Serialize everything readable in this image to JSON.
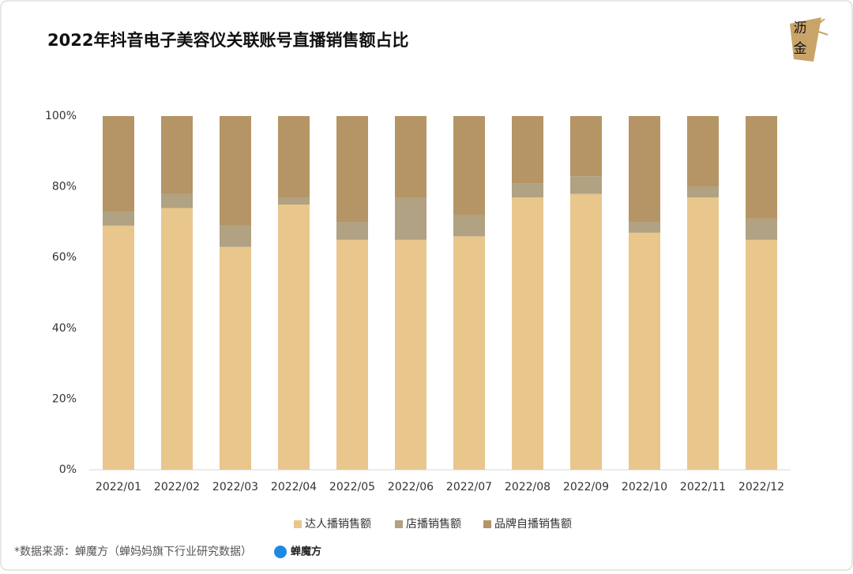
{
  "chart_data": {
    "type": "stacked_bar",
    "title": "2022年抖音电子美容仪关联账号直播销售额占比",
    "categories": [
      "2022/01",
      "2022/02",
      "2022/03",
      "2022/04",
      "2022/05",
      "2022/06",
      "2022/07",
      "2022/08",
      "2022/09",
      "2022/10",
      "2022/11",
      "2022/12"
    ],
    "series": [
      {
        "name": "达人播销售额",
        "color": "#e8c68c",
        "values": [
          69,
          74,
          63,
          75,
          65,
          65,
          66,
          77,
          78,
          67,
          77,
          65
        ]
      },
      {
        "name": "店播销售额",
        "color": "#b0a282",
        "values": [
          4,
          4,
          6,
          2,
          5,
          12,
          6,
          4,
          5,
          3,
          3,
          6
        ]
      },
      {
        "name": "品牌自播销售额",
        "color": "#b59466",
        "values": [
          27,
          22,
          31,
          23,
          30,
          23,
          28,
          19,
          17,
          30,
          20,
          29
        ]
      }
    ],
    "ylim": [
      0,
      100
    ],
    "yticks": [
      {
        "value": 0,
        "label": "0%"
      },
      {
        "value": 20,
        "label": "20%"
      },
      {
        "value": 40,
        "label": "40%"
      },
      {
        "value": 60,
        "label": "60%"
      },
      {
        "value": 80,
        "label": "80%"
      },
      {
        "value": 100,
        "label": "100%"
      }
    ],
    "legend": "bottom"
  },
  "logo": {
    "line1": "沥",
    "line2": "金"
  },
  "source": {
    "text": "*数据来源：蝉魔方（蝉妈妈旗下行业研究数据）",
    "brand": "蝉魔方"
  }
}
